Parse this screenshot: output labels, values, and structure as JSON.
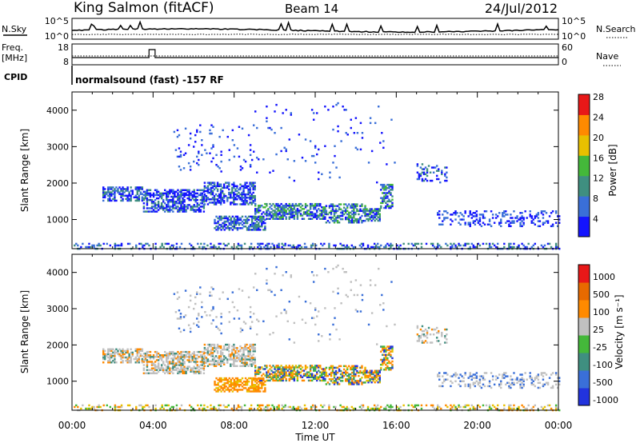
{
  "header": {
    "title": "King Salmon (fitACF)",
    "beam": "Beam 14",
    "date": "24/Jul/2012"
  },
  "noise_panel": {
    "left_label": "N.Sky",
    "left_ticks": [
      "10^5",
      "10^0"
    ],
    "right_ticks": [
      "10^5",
      "10^0"
    ],
    "right_label": "N.Search"
  },
  "freq_panel": {
    "left_label_line1": "Freq.",
    "left_label_line2": "[MHz]",
    "left_ticks": [
      "18",
      "8"
    ],
    "right_ticks": [
      "60",
      "0"
    ],
    "right_label": "Nave"
  },
  "cpid": {
    "label": "CPID",
    "text": "normalsound (fast) -157 RF"
  },
  "colors": {
    "blue": "#2233dd",
    "lightblue": "#3a6fd8",
    "teal": "#3f8f80",
    "green": "#44b83a",
    "grey": "#c0c0c0",
    "yellow": "#e8c000",
    "orange": "#ff8a00",
    "red": "#e81818"
  },
  "chart_data": [
    {
      "type": "heatmap",
      "name": "power",
      "ylabel": "Slant Range [km]",
      "y_ticks": [
        "1000",
        "2000",
        "3000",
        "4000"
      ],
      "ylim": [
        200,
        4500
      ],
      "xlim": [
        0,
        24
      ],
      "colorbar": {
        "label": "Power [dB]",
        "ticks": [
          "4",
          "8",
          "12",
          "16",
          "20",
          "24",
          "28"
        ],
        "colors": [
          "#1414ff",
          "#3a6fd8",
          "#3f8f80",
          "#44b83a",
          "#e8c000",
          "#ff8a00",
          "#e81818"
        ]
      }
    },
    {
      "type": "heatmap",
      "name": "velocity",
      "ylabel": "Slant Range [km]",
      "y_ticks": [
        "1000",
        "2000",
        "3000",
        "4000"
      ],
      "ylim": [
        200,
        4500
      ],
      "xlim": [
        0,
        24
      ],
      "colorbar": {
        "label": "Velocity [m s⁻¹]",
        "ticks": [
          "1000",
          "500",
          "100",
          "25",
          "-25",
          "-100",
          "-500",
          "-1000"
        ],
        "colors": [
          "#2233dd",
          "#3a6fd8",
          "#3f8f80",
          "#44b83a",
          "#c0c0c0",
          "#ff8a00",
          "#e86a00",
          "#e81818"
        ]
      }
    }
  ],
  "x_axis": {
    "label": "Time UT",
    "ticks": [
      "00:00",
      "04:00",
      "08:00",
      "12:00",
      "16:00",
      "20:00",
      "00:00"
    ]
  },
  "scatter_regions": [
    {
      "t0": 0.0,
      "t1": 24.0,
      "r0": 180,
      "r1": 330,
      "density": 0.3,
      "pal": "low"
    },
    {
      "t0": 1.5,
      "t1": 3.5,
      "r0": 1500,
      "r1": 1900,
      "density": 0.55,
      "pal": "main"
    },
    {
      "t0": 3.5,
      "t1": 6.5,
      "r0": 1200,
      "r1": 1800,
      "density": 0.6,
      "pal": "main"
    },
    {
      "t0": 6.5,
      "t1": 9.0,
      "r0": 1400,
      "r1": 2000,
      "density": 0.55,
      "pal": "main"
    },
    {
      "t0": 7.0,
      "t1": 9.5,
      "r0": 700,
      "r1": 1100,
      "density": 0.6,
      "pal": "orange"
    },
    {
      "t0": 9.0,
      "t1": 12.5,
      "r0": 1000,
      "r1": 1450,
      "density": 0.6,
      "pal": "strong"
    },
    {
      "t0": 12.5,
      "t1": 14.5,
      "r0": 900,
      "r1": 1400,
      "density": 0.5,
      "pal": "strong"
    },
    {
      "t0": 14.5,
      "t1": 15.2,
      "r0": 950,
      "r1": 1300,
      "density": 0.7,
      "pal": "strong"
    },
    {
      "t0": 15.2,
      "t1": 15.8,
      "r0": 1300,
      "r1": 1950,
      "density": 0.55,
      "pal": "strong"
    },
    {
      "t0": 17.0,
      "t1": 18.5,
      "r0": 2000,
      "r1": 2500,
      "density": 0.3,
      "pal": "main"
    },
    {
      "t0": 18.0,
      "t1": 24.0,
      "r0": 800,
      "r1": 1250,
      "density": 0.25,
      "pal": "weak"
    },
    {
      "t0": 5.0,
      "t1": 9.0,
      "r0": 2300,
      "r1": 3600,
      "density": 0.05,
      "pal": "weak"
    },
    {
      "t0": 9.0,
      "t1": 16.0,
      "r0": 2000,
      "r1": 4200,
      "density": 0.02,
      "pal": "weak"
    }
  ]
}
